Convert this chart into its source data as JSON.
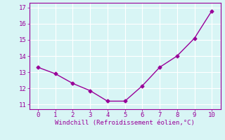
{
  "x": [
    0,
    1,
    2,
    3,
    4,
    5,
    6,
    7,
    8,
    9,
    10
  ],
  "y": [
    13.3,
    12.9,
    12.3,
    11.85,
    11.2,
    11.2,
    12.15,
    13.3,
    14.0,
    15.1,
    16.8
  ],
  "line_color": "#990099",
  "marker": "D",
  "marker_size": 2.5,
  "bg_color": "#d8f5f5",
  "grid_color": "#b0e0e0",
  "xlabel": "Windchill (Refroidissement éolien,°C)",
  "xlabel_color": "#990099",
  "tick_color": "#990099",
  "spine_color": "#990099",
  "xlim": [
    -0.5,
    10.5
  ],
  "ylim": [
    10.7,
    17.3
  ],
  "yticks": [
    11,
    12,
    13,
    14,
    15,
    16,
    17
  ],
  "xticks": [
    0,
    1,
    2,
    3,
    4,
    5,
    6,
    7,
    8,
    9,
    10
  ],
  "label_fontsize": 6.5,
  "tick_fontsize": 6.5,
  "linewidth": 1.0
}
